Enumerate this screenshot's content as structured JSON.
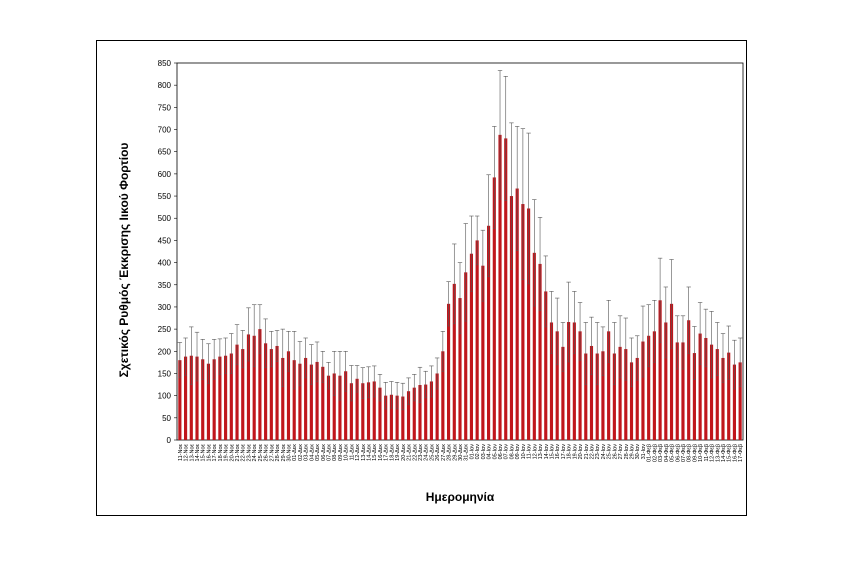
{
  "chart_data": {
    "type": "bar",
    "title": "",
    "xlabel": "Ημερομηνία",
    "ylabel": "Σχετικός Ρυθμός Έκκρισης Ιικού Φορτίου",
    "ylim": [
      0,
      850
    ],
    "yticks": [
      0,
      50,
      100,
      150,
      200,
      250,
      300,
      350,
      400,
      450,
      500,
      550,
      600,
      650,
      700,
      750,
      800,
      850
    ],
    "grid": false,
    "legend": "none",
    "bar_color": "#c0161c",
    "error_bar_color": "#555555",
    "categories": [
      "11-Νοε",
      "12-Νοε",
      "13-Νοε",
      "14-Νοε",
      "15-Νοε",
      "16-Νοε",
      "17-Νοε",
      "18-Νοε",
      "19-Νοε",
      "20-Νοε",
      "21-Νοε",
      "22-Νοε",
      "23-Νοε",
      "24-Νοε",
      "25-Νοε",
      "26-Νοε",
      "27-Νοε",
      "28-Νοε",
      "29-Νοε",
      "30-Νοε",
      "01-Δεκ",
      "02-Δεκ",
      "03-Δεκ",
      "04-Δεκ",
      "05-Δεκ",
      "06-Δεκ",
      "07-Δεκ",
      "08-Δεκ",
      "09-Δεκ",
      "10-Δεκ",
      "11-Δεκ",
      "12-Δεκ",
      "13-Δεκ",
      "14-Δεκ",
      "15-Δεκ",
      "16-Δεκ",
      "17-Δεκ",
      "18-Δεκ",
      "19-Δεκ",
      "20-Δεκ",
      "21-Δεκ",
      "22-Δεκ",
      "23-Δεκ",
      "24-Δεκ",
      "25-Δεκ",
      "26-Δεκ",
      "27-Δεκ",
      "28-Δεκ",
      "29-Δεκ",
      "30-Δεκ",
      "31-Δεκ",
      "01-Ιαν",
      "02-Ιαν",
      "03-Ιαν",
      "04-Ιαν",
      "05-Ιαν",
      "06-Ιαν",
      "07-Ιαν",
      "08-Ιαν",
      "09-Ιαν",
      "10-Ιαν",
      "11-Ιαν",
      "12-Ιαν",
      "13-Ιαν",
      "14-Ιαν",
      "15-Ιαν",
      "16-Ιαν",
      "17-Ιαν",
      "18-Ιαν",
      "19-Ιαν",
      "20-Ιαν",
      "21-Ιαν",
      "22-Ιαν",
      "23-Ιαν",
      "24-Ιαν",
      "25-Ιαν",
      "26-Ιαν",
      "27-Ιαν",
      "28-Ιαν",
      "29-Ιαν",
      "30-Ιαν",
      "31-Ιαν",
      "01-Φεβ",
      "02-Φεβ",
      "03-Φεβ",
      "04-Φεβ",
      "05-Φεβ",
      "06-Φεβ",
      "07-Φεβ",
      "08-Φεβ",
      "09-Φεβ",
      "10-Φεβ",
      "11-Φεβ",
      "12-Φεβ",
      "13-Φεβ",
      "14-Φεβ",
      "15-Φεβ",
      "16-Φεβ",
      "17-Φεβ"
    ],
    "values": [
      180,
      188,
      190,
      188,
      182,
      172,
      182,
      188,
      190,
      195,
      215,
      205,
      238,
      235,
      250,
      218,
      205,
      212,
      185,
      200,
      180,
      172,
      185,
      170,
      176,
      165,
      145,
      150,
      145,
      155,
      128,
      138,
      128,
      130,
      132,
      118,
      100,
      102,
      100,
      98,
      110,
      118,
      124,
      125,
      132,
      150,
      200,
      307,
      352,
      320,
      378,
      420,
      450,
      393,
      483,
      592,
      688,
      680,
      550,
      567,
      532,
      522,
      422,
      397,
      335,
      265,
      245,
      210,
      266,
      265,
      245,
      195,
      212,
      195,
      200,
      245,
      195,
      210,
      205,
      175,
      185,
      222,
      235,
      245,
      315,
      265,
      307,
      220,
      220,
      270,
      196,
      240,
      230,
      215,
      205,
      185,
      197,
      170,
      175
    ],
    "errors": [
      40,
      42,
      65,
      55,
      45,
      45,
      45,
      40,
      40,
      45,
      45,
      42,
      60,
      70,
      55,
      55,
      40,
      35,
      65,
      45,
      65,
      50,
      45,
      45,
      45,
      35,
      30,
      50,
      55,
      45,
      40,
      30,
      35,
      35,
      35,
      30,
      30,
      30,
      30,
      30,
      30,
      30,
      40,
      30,
      35,
      35,
      45,
      50,
      90,
      80,
      110,
      85,
      55,
      80,
      115,
      115,
      145,
      140,
      165,
      140,
      170,
      170,
      120,
      105,
      80,
      70,
      75,
      55,
      90,
      70,
      65,
      70,
      65,
      70,
      55,
      70,
      70,
      70,
      70,
      55,
      50,
      80,
      70,
      70,
      95,
      80,
      100,
      60,
      60,
      75,
      60,
      70,
      65,
      75,
      60,
      55,
      60,
      55,
      55
    ]
  }
}
